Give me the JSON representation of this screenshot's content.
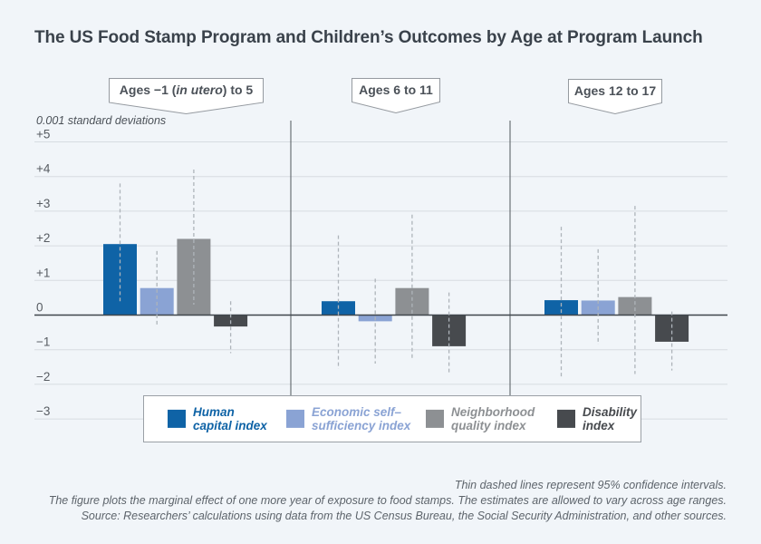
{
  "title": "The US Food Stamp Program and Children’s Outcomes by Age at Program Launch",
  "axis_note": "0.001 standard deviations",
  "age_labels": [
    {
      "prefix": "Ages −1 (",
      "italic": "in utero",
      "suffix": ") to 5"
    },
    {
      "prefix": "Ages 6 to 11",
      "italic": "",
      "suffix": ""
    },
    {
      "prefix": "Ages 12 to 17",
      "italic": "",
      "suffix": ""
    }
  ],
  "colors": {
    "background": "#f1f5f9",
    "gridline": "#d7dce1",
    "zero_line": "#40464c",
    "panel_divider": "#50565c",
    "ci_line": "#aeb4ba",
    "human_capital": "#0f63a6",
    "economic_self_sufficiency": "#8aa3d4",
    "neighborhood_quality": "#8d9093",
    "disability": "#474a4e"
  },
  "chart_data": {
    "type": "bar",
    "title": "The US Food Stamp Program and Children’s Outcomes by Age at Program Launch",
    "ylabel": "0.001 standard deviations",
    "ylim": [
      -3.6,
      5.6
    ],
    "grid": true,
    "legend_position": "bottom",
    "y_ticks": [
      {
        "label": "+5",
        "value": 5
      },
      {
        "label": "+4",
        "value": 4
      },
      {
        "label": "+3",
        "value": 3
      },
      {
        "label": "+2",
        "value": 2
      },
      {
        "label": "+1",
        "value": 1
      },
      {
        "label": "0",
        "value": 0
      },
      {
        "label": "−1",
        "value": -1
      },
      {
        "label": "−2",
        "value": -2
      },
      {
        "label": "−3",
        "value": -3
      }
    ],
    "series": [
      {
        "name": "Human capital index",
        "color": "#0f63a6"
      },
      {
        "name": "Economic self–sufficiency index",
        "color": "#8aa3d4"
      },
      {
        "name": "Neighborhood quality index",
        "color": "#8d9093"
      },
      {
        "name": "Disability index",
        "color": "#474a4e"
      }
    ],
    "groups": [
      {
        "label": "Ages −1 (in utero) to 5",
        "values": [
          2.05,
          0.78,
          2.2,
          -0.33
        ],
        "ci_95": [
          [
            0.4,
            3.8
          ],
          [
            -0.3,
            1.85
          ],
          [
            0.3,
            4.2
          ],
          [
            -1.1,
            0.4
          ]
        ]
      },
      {
        "label": "Ages 6 to 11",
        "values": [
          0.4,
          -0.18,
          0.78,
          -0.9
        ],
        "ci_95": [
          [
            -1.55,
            2.3
          ],
          [
            -1.4,
            1.05
          ],
          [
            -1.25,
            2.9
          ],
          [
            -1.7,
            0.65
          ]
        ]
      },
      {
        "label": "Ages 12 to 17",
        "values": [
          0.43,
          0.42,
          0.52,
          -0.77
        ],
        "ci_95": [
          [
            -1.8,
            2.55
          ],
          [
            -0.85,
            1.9
          ],
          [
            -1.7,
            3.15
          ],
          [
            -1.6,
            0.1
          ]
        ]
      }
    ]
  },
  "legend": {
    "items": [
      {
        "line1": "Human",
        "line2": "capital index",
        "color": "#0f63a6"
      },
      {
        "line1": "Economic self–",
        "line2": "sufficiency index",
        "color": "#8aa3d4"
      },
      {
        "line1": "Neighborhood",
        "line2": "quality index",
        "color": "#8d9093"
      },
      {
        "line1": "Disability",
        "line2": "index",
        "color": "#474a4e"
      }
    ]
  },
  "footer": {
    "lines": [
      "Thin dashed lines represent 95% confidence intervals.",
      "The figure plots the marginal effect of one more year of exposure to food stamps. The estimates are allowed to vary across age ranges.",
      "Source: Researchers’ calculations using data from the US Census Bureau, the Social Security Administration, and other sources."
    ]
  }
}
